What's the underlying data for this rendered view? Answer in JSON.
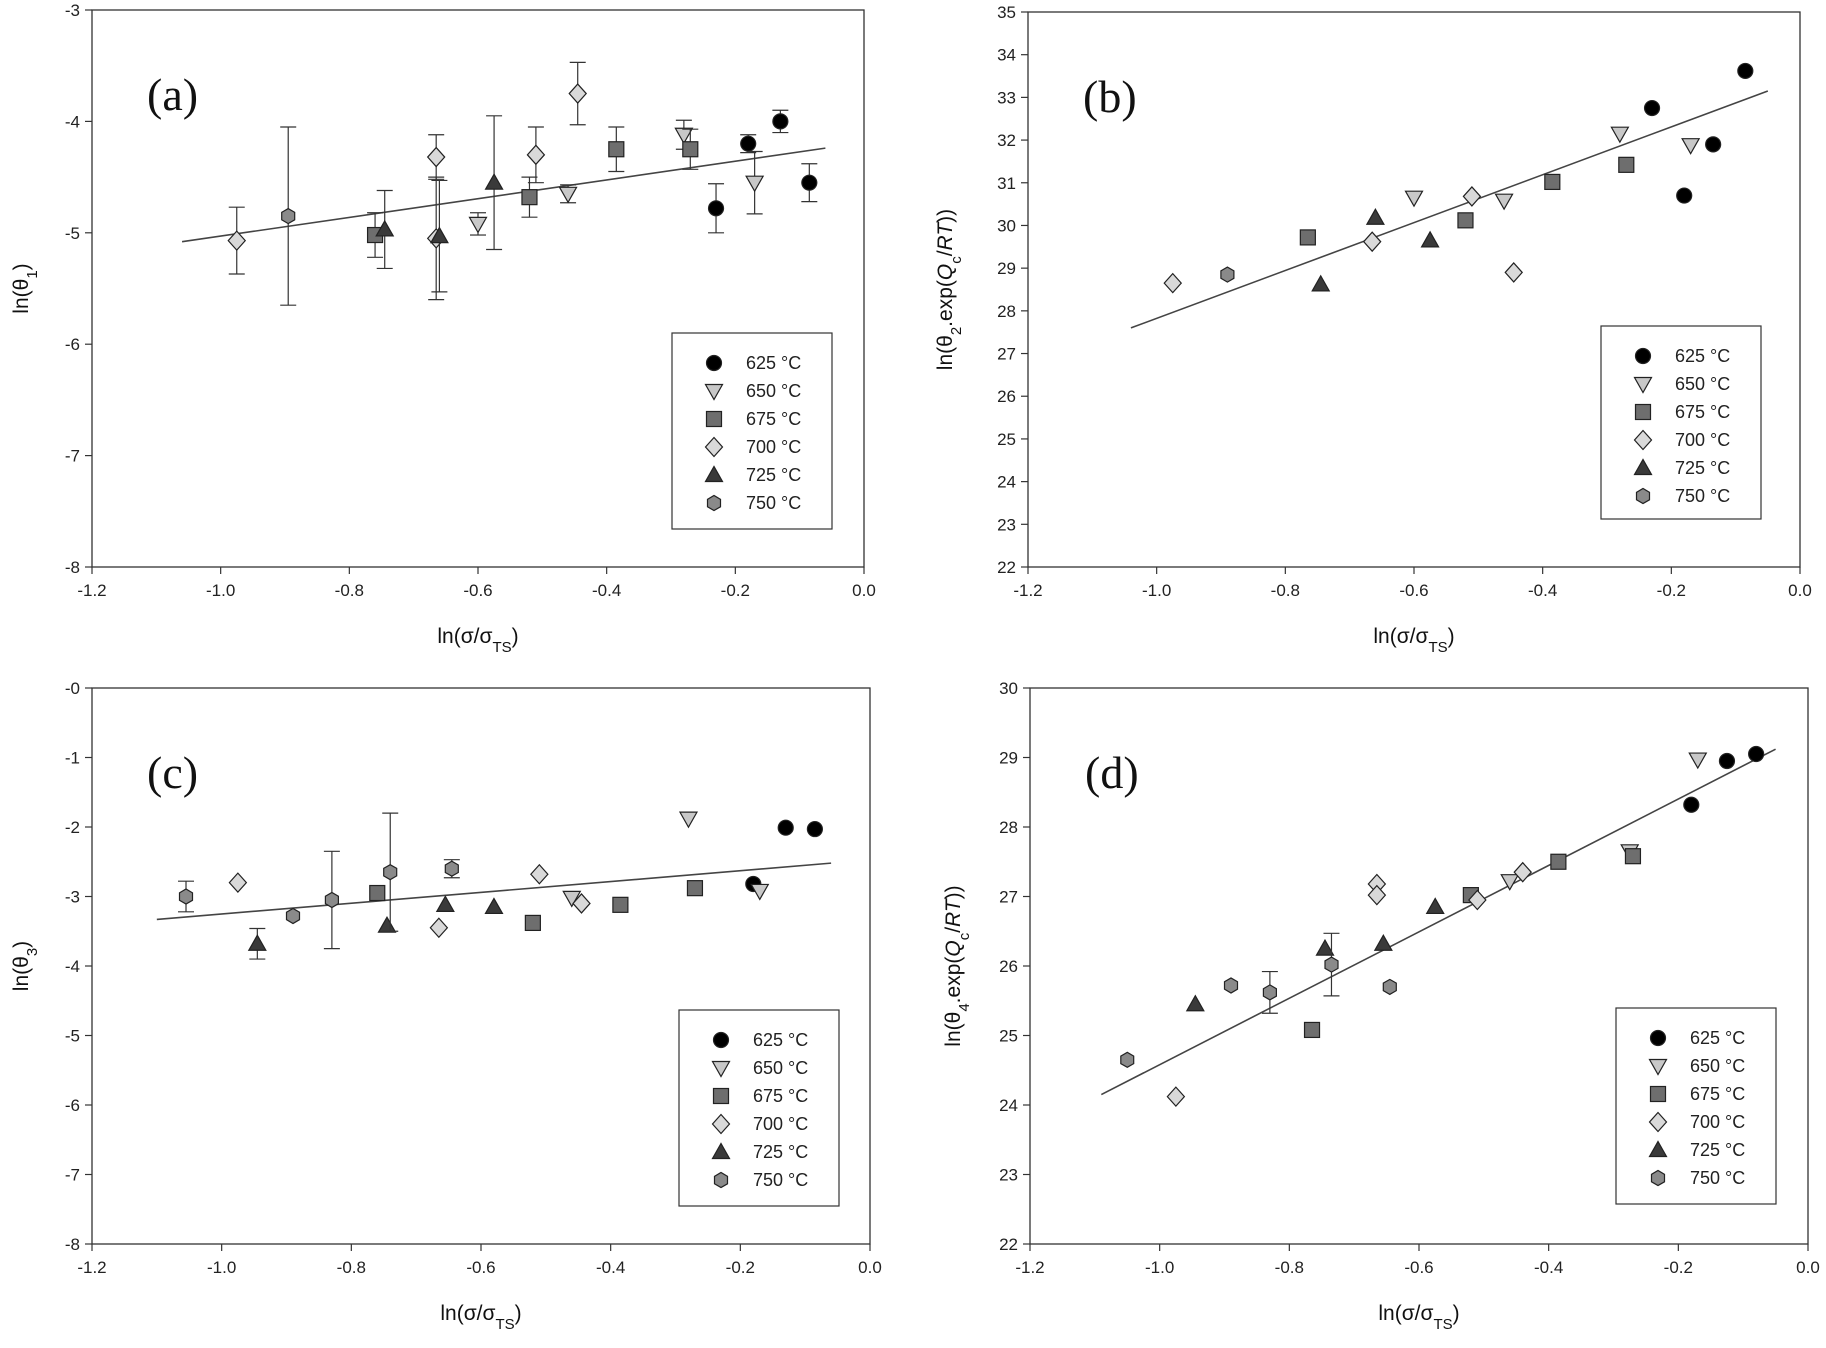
{
  "legend": [
    {
      "label": "625 °C",
      "marker": "circle",
      "fill": "#000000"
    },
    {
      "label": "650 °C",
      "marker": "tri-down",
      "fill": "#c8c8c8"
    },
    {
      "label": "675 °C",
      "marker": "square",
      "fill": "#6e6e6e"
    },
    {
      "label": "700 °C",
      "marker": "diamond",
      "fill": "#d9d9d9"
    },
    {
      "label": "725 °C",
      "marker": "tri-up",
      "fill": "#3a3a3a"
    },
    {
      "label": "750 °C",
      "marker": "hexagon",
      "fill": "#8a8a8a"
    }
  ],
  "chart_data": [
    {
      "id": "a",
      "type": "scatter",
      "panel_label": "(a)",
      "xlabel": "ln(σ/σTS)",
      "ylabel": "ln(θ1)",
      "xlim": [
        -1.2,
        0.0
      ],
      "ylim": [
        -8,
        -3
      ],
      "xticks": [
        "-1.2",
        "-1.0",
        "-0.8",
        "-0.6",
        "-0.4",
        "-0.2",
        "0.0"
      ],
      "yticks": [
        "-8",
        "-7",
        "-6",
        "-5",
        "-4",
        "-3"
      ],
      "legend_position": "lower-right",
      "fit_line": [
        [
          -1.06,
          -5.08
        ],
        [
          -0.06,
          -4.24
        ]
      ],
      "series": [
        {
          "name": "625 °C",
          "points": [
            [
              -0.23,
              -4.78,
              0.22
            ],
            [
              -0.18,
              -4.2,
              0.08
            ],
            [
              -0.13,
              -4.0,
              0.1
            ],
            [
              -0.085,
              -4.55,
              0.17
            ]
          ]
        },
        {
          "name": "650 °C",
          "points": [
            [
              -0.6,
              -4.92,
              0.1
            ],
            [
              -0.46,
              -4.65,
              0.08
            ],
            [
              -0.28,
              -4.12,
              0.13
            ],
            [
              -0.17,
              -4.55,
              0.28
            ]
          ]
        },
        {
          "name": "675 °C",
          "points": [
            [
              -0.76,
              -5.02,
              0.2
            ],
            [
              -0.52,
              -4.68,
              0.18
            ],
            [
              -0.385,
              -4.25,
              0.2
            ],
            [
              -0.27,
              -4.25,
              0.18
            ]
          ]
        },
        {
          "name": "700 °C",
          "points": [
            [
              -0.975,
              -5.07,
              0.3
            ],
            [
              -0.665,
              -4.32,
              0.2
            ],
            [
              -0.665,
              -5.05,
              0.55
            ],
            [
              -0.51,
              -4.3,
              0.25
            ],
            [
              -0.445,
              -3.75,
              0.28
            ]
          ]
        },
        {
          "name": "725 °C",
          "points": [
            [
              -0.745,
              -4.97,
              0.35
            ],
            [
              -0.66,
              -5.03,
              0.5
            ],
            [
              -0.575,
              -4.55,
              0.6
            ]
          ]
        },
        {
          "name": "750 °C",
          "points": [
            [
              -0.895,
              -4.85,
              0.8
            ]
          ]
        }
      ]
    },
    {
      "id": "b",
      "type": "scatter",
      "panel_label": "(b)",
      "xlabel": "ln(σ/σTS)",
      "ylabel": "ln(θ2.exp(Qc/RT))",
      "xlim": [
        -1.2,
        0.0
      ],
      "ylim": [
        22,
        35
      ],
      "xticks": [
        "-1.2",
        "-1.0",
        "-0.8",
        "-0.6",
        "-0.4",
        "-0.2",
        "0.0"
      ],
      "yticks": [
        "22",
        "23",
        "24",
        "25",
        "26",
        "27",
        "28",
        "29",
        "30",
        "31",
        "32",
        "33",
        "34",
        "35"
      ],
      "legend_position": "lower-right",
      "fit_line": [
        [
          -1.04,
          27.6
        ],
        [
          -0.05,
          33.15
        ]
      ],
      "series": [
        {
          "name": "625 °C",
          "points": [
            [
              -0.23,
              32.75,
              0
            ],
            [
              -0.18,
              30.7,
              0
            ],
            [
              -0.135,
              31.9,
              0
            ],
            [
              -0.085,
              33.62,
              0
            ]
          ]
        },
        {
          "name": "650 °C",
          "points": [
            [
              -0.6,
              30.65,
              0
            ],
            [
              -0.46,
              30.58,
              0
            ],
            [
              -0.28,
              32.15,
              0
            ],
            [
              -0.17,
              31.88,
              0
            ]
          ]
        },
        {
          "name": "675 °C",
          "points": [
            [
              -0.765,
              29.72,
              0
            ],
            [
              -0.52,
              30.12,
              0
            ],
            [
              -0.385,
              31.02,
              0
            ],
            [
              -0.27,
              31.42,
              0
            ]
          ]
        },
        {
          "name": "700 °C",
          "points": [
            [
              -0.975,
              28.65,
              0
            ],
            [
              -0.665,
              29.62,
              0
            ],
            [
              -0.51,
              30.68,
              0
            ],
            [
              -0.445,
              28.9,
              0
            ]
          ]
        },
        {
          "name": "725 °C",
          "points": [
            [
              -0.745,
              28.62,
              0
            ],
            [
              -0.66,
              30.18,
              0
            ],
            [
              -0.575,
              29.65,
              0
            ]
          ]
        },
        {
          "name": "750 °C",
          "points": [
            [
              -0.89,
              28.85,
              0
            ]
          ]
        }
      ]
    },
    {
      "id": "c",
      "type": "scatter",
      "panel_label": "(c)",
      "xlabel": "ln(σ/σTS)",
      "ylabel": "ln(θ3)",
      "xlim": [
        -1.2,
        0.0
      ],
      "ylim": [
        -8,
        0
      ],
      "xticks": [
        "-1.2",
        "-1.0",
        "-0.8",
        "-0.6",
        "-0.4",
        "-0.2",
        "0.0"
      ],
      "yticks": [
        "-8",
        "-7",
        "-6",
        "-5",
        "-4",
        "-3",
        "-2",
        "-1",
        "-0"
      ],
      "legend_position": "lower-right",
      "fit_line": [
        [
          -1.1,
          -3.33
        ],
        [
          -0.06,
          -2.52
        ]
      ],
      "series": [
        {
          "name": "625 °C",
          "points": [
            [
              -0.18,
              -2.82,
              0
            ],
            [
              -0.13,
              -2.01,
              0
            ],
            [
              -0.085,
              -2.03,
              0
            ]
          ]
        },
        {
          "name": "650 °C",
          "points": [
            [
              -0.46,
              -3.02,
              0
            ],
            [
              -0.28,
              -1.88,
              0
            ],
            [
              -0.17,
              -2.92,
              0
            ]
          ]
        },
        {
          "name": "675 °C",
          "points": [
            [
              -0.76,
              -2.95,
              0
            ],
            [
              -0.52,
              -3.38,
              0
            ],
            [
              -0.385,
              -3.12,
              0
            ],
            [
              -0.27,
              -2.88,
              0
            ]
          ]
        },
        {
          "name": "700 °C",
          "points": [
            [
              -0.975,
              -2.8,
              0
            ],
            [
              -0.665,
              -3.45,
              0
            ],
            [
              -0.51,
              -2.68,
              0
            ],
            [
              -0.445,
              -3.1,
              0
            ]
          ]
        },
        {
          "name": "725 °C",
          "points": [
            [
              -0.945,
              -3.68,
              0.22
            ],
            [
              -0.745,
              -3.42,
              0
            ],
            [
              -0.655,
              -3.12,
              0
            ],
            [
              -0.58,
              -3.15,
              0
            ]
          ]
        },
        {
          "name": "750 °C",
          "points": [
            [
              -1.055,
              -3.0,
              0.22
            ],
            [
              -0.89,
              -3.28,
              0
            ],
            [
              -0.83,
              -3.05,
              0.7
            ],
            [
              -0.74,
              -2.65,
              0.85
            ],
            [
              -0.645,
              -2.6,
              0.13
            ]
          ]
        }
      ]
    },
    {
      "id": "d",
      "type": "scatter",
      "panel_label": "(d)",
      "xlabel": "ln(σ/σTS)",
      "ylabel": "ln(θ4.exp(Qc/RT))",
      "xlim": [
        -1.2,
        0.0
      ],
      "ylim": [
        22,
        30
      ],
      "xticks": [
        "-1.2",
        "-1.0",
        "-0.8",
        "-0.6",
        "-0.4",
        "-0.2",
        "0.0"
      ],
      "yticks": [
        "22",
        "23",
        "24",
        "25",
        "26",
        "27",
        "28",
        "29",
        "30"
      ],
      "legend_position": "lower-right",
      "fit_line": [
        [
          -1.09,
          24.15
        ],
        [
          -0.05,
          29.12
        ]
      ],
      "series": [
        {
          "name": "625 °C",
          "points": [
            [
              -0.18,
              28.32,
              0
            ],
            [
              -0.125,
              28.95,
              0
            ],
            [
              -0.08,
              29.05,
              0
            ]
          ]
        },
        {
          "name": "650 °C",
          "points": [
            [
              -0.46,
              27.22,
              0
            ],
            [
              -0.275,
              27.65,
              0
            ],
            [
              -0.17,
              28.97,
              0
            ]
          ]
        },
        {
          "name": "675 °C",
          "points": [
            [
              -0.765,
              25.08,
              0
            ],
            [
              -0.52,
              27.02,
              0
            ],
            [
              -0.385,
              27.5,
              0
            ],
            [
              -0.27,
              27.58,
              0
            ]
          ]
        },
        {
          "name": "700 °C",
          "points": [
            [
              -0.975,
              24.12,
              0
            ],
            [
              -0.665,
              27.18,
              0
            ],
            [
              -0.665,
              27.02,
              0
            ],
            [
              -0.51,
              26.95,
              0
            ],
            [
              -0.44,
              27.35,
              0
            ]
          ]
        },
        {
          "name": "725 °C",
          "points": [
            [
              -0.945,
              25.45,
              0
            ],
            [
              -0.745,
              26.25,
              0
            ],
            [
              -0.655,
              26.32,
              0
            ],
            [
              -0.575,
              26.85,
              0
            ]
          ]
        },
        {
          "name": "750 °C",
          "points": [
            [
              -1.05,
              24.65,
              0
            ],
            [
              -0.89,
              25.72,
              0
            ],
            [
              -0.83,
              25.62,
              0.3
            ],
            [
              -0.735,
              26.02,
              0.45
            ],
            [
              -0.645,
              25.7,
              0
            ]
          ]
        }
      ]
    }
  ]
}
